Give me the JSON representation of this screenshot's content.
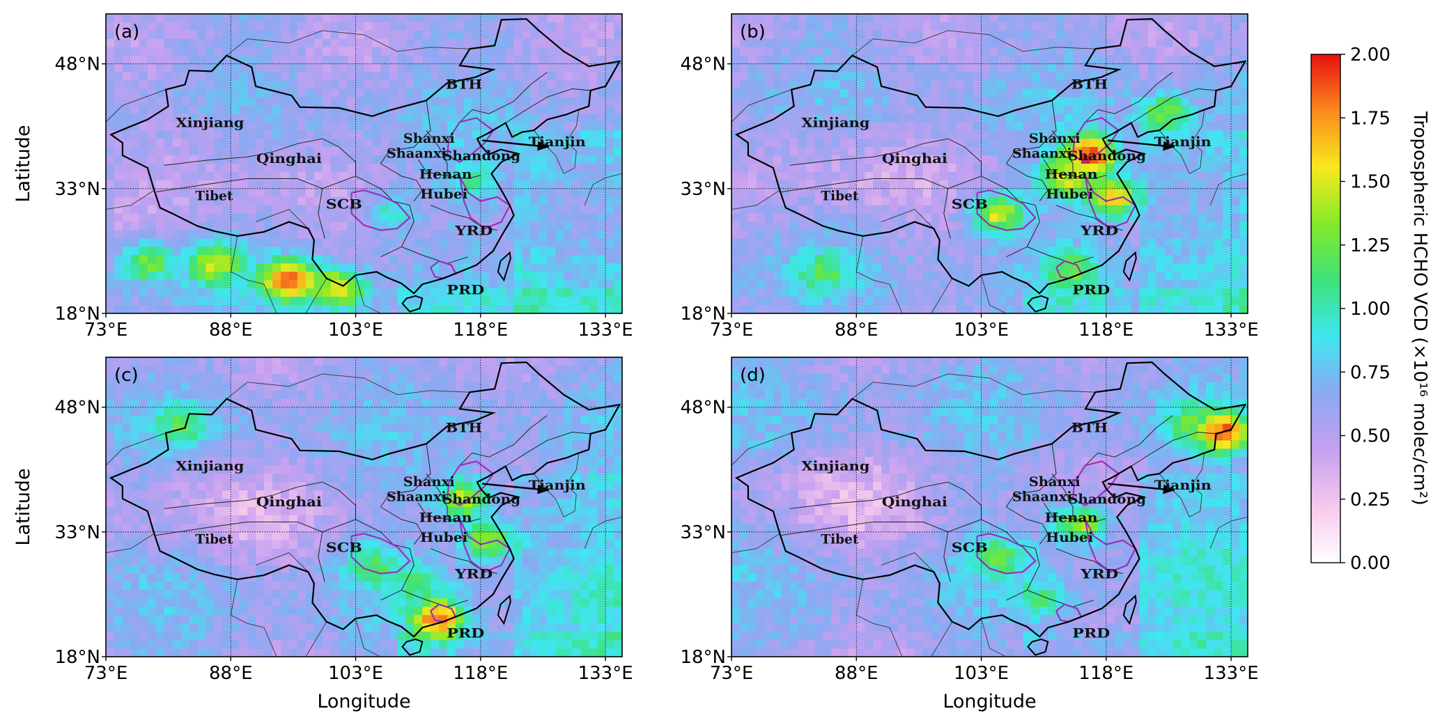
{
  "colorbar": {
    "title": "Tropospheric HCHO VCD (×10¹⁶ molec/cm²)",
    "ticks": [
      "0.00",
      "0.25",
      "0.50",
      "0.75",
      "1.00",
      "1.25",
      "1.50",
      "1.75",
      "2.00"
    ],
    "range": [
      0,
      2
    ],
    "colors": [
      "#ffffff",
      "#f6c8ec",
      "#c4a0f0",
      "#8ca8f2",
      "#3fe6f0",
      "#3ee27a",
      "#84ea2a",
      "#f8e81e",
      "#fa8a1e",
      "#e81010"
    ]
  },
  "axes": {
    "xlabel": "Longitude",
    "ylabel": "Latitude",
    "xticks": [
      "73°E",
      "88°E",
      "103°E",
      "118°E",
      "133°E"
    ],
    "yticks": [
      "48°N",
      "33°N",
      "18°N"
    ],
    "lon_range": [
      73,
      135
    ],
    "lat_range": [
      18,
      54
    ]
  },
  "panels": [
    {
      "label": "(a)",
      "hotspots": [
        {
          "lon": 95,
          "lat": 22,
          "value": 1.95
        },
        {
          "lon": 86,
          "lat": 24,
          "value": 1.5
        },
        {
          "lon": 101,
          "lat": 21,
          "value": 1.6
        },
        {
          "lon": 78,
          "lat": 24,
          "value": 1.3
        },
        {
          "lon": 117,
          "lat": 34,
          "value": 1.05
        },
        {
          "lon": 107,
          "lat": 30,
          "value": 0.95
        }
      ]
    },
    {
      "label": "(b)",
      "hotspots": [
        {
          "lon": 116,
          "lat": 37,
          "value": 2.0
        },
        {
          "lon": 119,
          "lat": 32,
          "value": 1.6
        },
        {
          "lon": 113,
          "lat": 34,
          "value": 1.5
        },
        {
          "lon": 105,
          "lat": 30,
          "value": 1.5
        },
        {
          "lon": 114,
          "lat": 23,
          "value": 1.3
        },
        {
          "lon": 84,
          "lat": 23,
          "value": 1.2
        },
        {
          "lon": 125,
          "lat": 42,
          "value": 1.3
        }
      ]
    },
    {
      "label": "(c)",
      "hotspots": [
        {
          "lon": 116,
          "lat": 37,
          "value": 1.45
        },
        {
          "lon": 119,
          "lat": 32,
          "value": 1.4
        },
        {
          "lon": 113,
          "lat": 22.5,
          "value": 1.9
        },
        {
          "lon": 105,
          "lat": 29,
          "value": 1.2
        },
        {
          "lon": 82,
          "lat": 46,
          "value": 1.2
        },
        {
          "lon": 110,
          "lat": 27,
          "value": 1.1
        }
      ]
    },
    {
      "label": "(d)",
      "hotspots": [
        {
          "lon": 115,
          "lat": 34,
          "value": 1.4
        },
        {
          "lon": 105,
          "lat": 30,
          "value": 1.25
        },
        {
          "lon": 132,
          "lat": 45,
          "value": 1.9
        },
        {
          "lon": 128,
          "lat": 46,
          "value": 1.2
        },
        {
          "lon": 110,
          "lat": 25,
          "value": 1.1
        }
      ]
    }
  ],
  "regions": [
    {
      "name": "Xinjiang",
      "lon": 85.5,
      "lat": 40.4
    },
    {
      "name": "Qinghai",
      "lon": 95,
      "lat": 36.1
    },
    {
      "name": "Tibet",
      "lon": 86,
      "lat": 31.6
    },
    {
      "name": "SCB",
      "lon": 101.6,
      "lat": 30.6
    },
    {
      "name": "BTH",
      "lon": 116,
      "lat": 45
    },
    {
      "name": "Shanxi",
      "lon": 111.8,
      "lat": 38.5
    },
    {
      "name": "Shaanxi",
      "lon": 110.3,
      "lat": 36.7
    },
    {
      "name": "Shandong",
      "lon": 118.1,
      "lat": 36.4
    },
    {
      "name": "Henan",
      "lon": 113.8,
      "lat": 34.2
    },
    {
      "name": "Hubei",
      "lon": 113.6,
      "lat": 31.8
    },
    {
      "name": "YRD",
      "lon": 117.2,
      "lat": 27.4
    },
    {
      "name": "PRD",
      "lon": 116.2,
      "lat": 20.3
    },
    {
      "name": "Tianjin",
      "lon": 127.2,
      "lat": 38.1
    }
  ]
}
